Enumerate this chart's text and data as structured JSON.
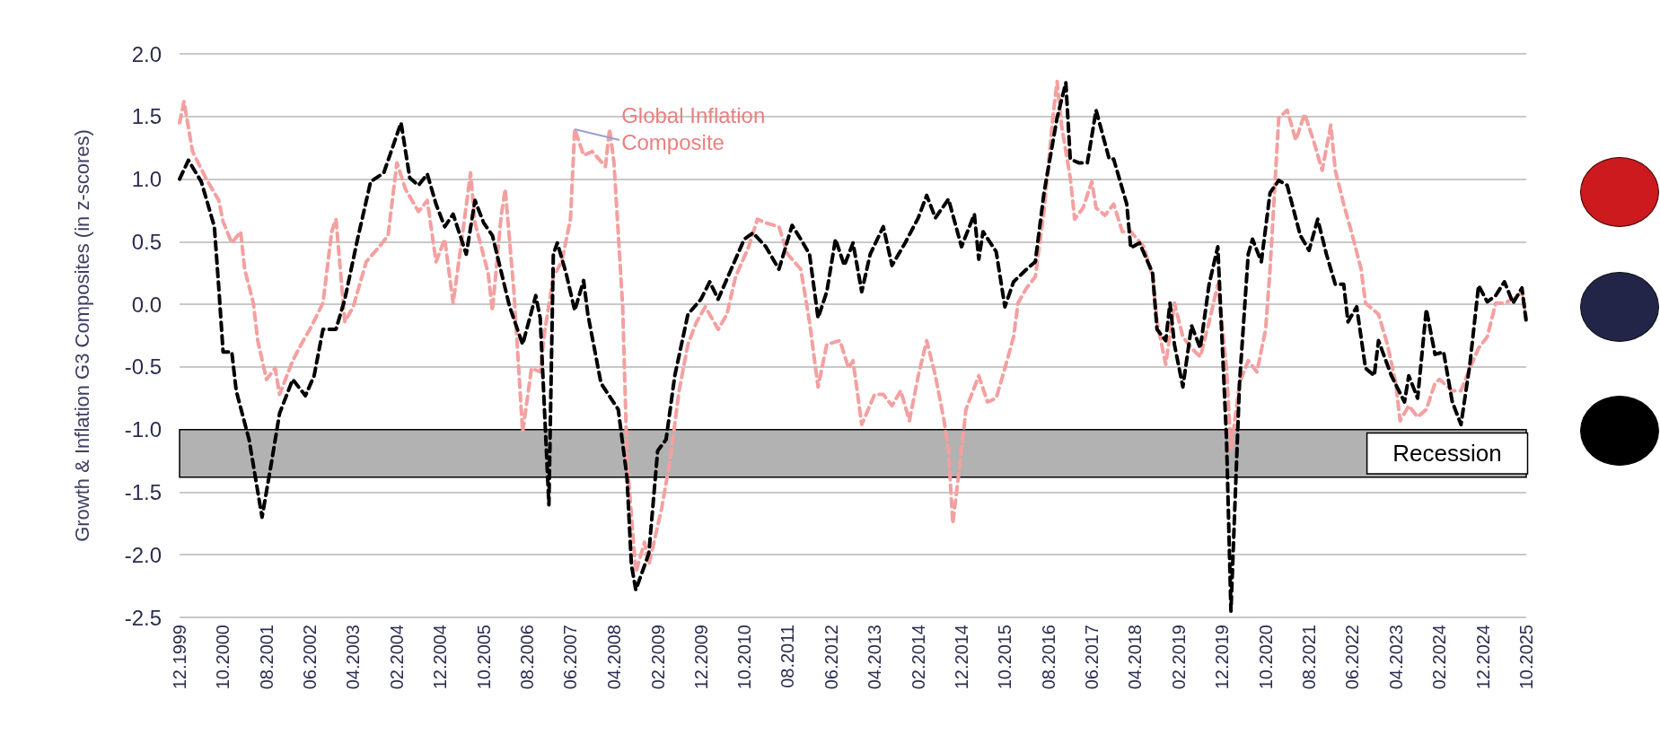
{
  "chart_data": {
    "type": "line",
    "ylabel": "Growth & Inflation G3 Composites (in z-scores)",
    "xlim": [
      "1999-12",
      "2025-10"
    ],
    "ylim": [
      -2.5,
      2.0
    ],
    "xticks": [
      {
        "value": "1999-12",
        "label": "12.1999"
      },
      {
        "value": "2000-10",
        "label": "10.2000"
      },
      {
        "value": "2001-08",
        "label": "08.2001"
      },
      {
        "value": "2002-06",
        "label": "06.2002"
      },
      {
        "value": "2003-04",
        "label": "04.2003"
      },
      {
        "value": "2004-02",
        "label": "02.2004"
      },
      {
        "value": "2004-12",
        "label": "12.2004"
      },
      {
        "value": "2005-10",
        "label": "10.2005"
      },
      {
        "value": "2006-08",
        "label": "08.2006"
      },
      {
        "value": "2007-06",
        "label": "06.2007"
      },
      {
        "value": "2008-04",
        "label": "04.2008"
      },
      {
        "value": "2009-02",
        "label": "02.2009"
      },
      {
        "value": "2009-12",
        "label": "12.2009"
      },
      {
        "value": "2010-10",
        "label": "10.2010"
      },
      {
        "value": "2011-08",
        "label": "08.2011"
      },
      {
        "value": "2012-06",
        "label": "06.2012"
      },
      {
        "value": "2013-04",
        "label": "04.2013"
      },
      {
        "value": "2014-02",
        "label": "02.2014"
      },
      {
        "value": "2014-12",
        "label": "12.2014"
      },
      {
        "value": "2015-10",
        "label": "10.2015"
      },
      {
        "value": "2016-08",
        "label": "08.2016"
      },
      {
        "value": "2017-06",
        "label": "06.2017"
      },
      {
        "value": "2018-04",
        "label": "04.2018"
      },
      {
        "value": "2019-02",
        "label": "02.2019"
      },
      {
        "value": "2019-12",
        "label": "12.2019"
      },
      {
        "value": "2020-10",
        "label": "10.2020"
      },
      {
        "value": "2021-08",
        "label": "08.2021"
      },
      {
        "value": "2022-06",
        "label": "06.2022"
      },
      {
        "value": "2023-04",
        "label": "04.2023"
      },
      {
        "value": "2024-02",
        "label": "02.2024"
      },
      {
        "value": "2024-12",
        "label": "12.2024"
      },
      {
        "value": "2025-10",
        "label": "10.2025"
      }
    ],
    "yticks": [
      -2.5,
      {
        "value": -2,
        "label": "-2.0"
      },
      -1.5,
      {
        "value": -1,
        "label": "-1.0"
      },
      -0.5,
      {
        "value": 0,
        "label": "0.0"
      },
      0.5,
      {
        "value": 1,
        "label": "1.0"
      },
      1.5,
      {
        "value": 2,
        "label": "2.0"
      }
    ],
    "grid": "y",
    "line_style": "dashed",
    "bands": [
      {
        "axis": "y",
        "from": -1.38,
        "to": -1.0,
        "label": "Recession",
        "color": "#b2b2b2"
      }
    ],
    "annotations": [
      {
        "text": "Global Inflation Composite",
        "x": "2007-07",
        "y": 1.4
      }
    ],
    "series": [
      {
        "color": "#f4a0a0",
        "x": [
          "1999-12",
          "2000-01",
          "2000-03",
          "2000-06",
          "2000-09",
          "2000-10",
          "2000-12",
          "2001-02",
          "2001-03",
          "2001-05",
          "2001-06",
          "2001-08",
          "2001-10",
          "2001-11",
          "2002-02",
          "2002-04",
          "2002-06",
          "2002-09",
          "2002-11",
          "2002-12",
          "2003-02",
          "2003-04",
          "2003-07",
          "2003-10",
          "2003-12",
          "2004-02",
          "2004-04",
          "2004-07",
          "2004-09",
          "2004-11",
          "2005-01",
          "2005-03",
          "2005-05",
          "2005-07",
          "2005-08",
          "2005-11",
          "2005-12",
          "2006-02",
          "2006-03",
          "2006-05",
          "2006-07",
          "2006-09",
          "2006-11",
          "2006-12",
          "2007-02",
          "2007-04",
          "2007-06",
          "2007-07",
          "2007-09",
          "2007-11",
          "2008-02",
          "2008-03",
          "2008-04",
          "2008-06",
          "2008-07",
          "2008-09",
          "2008-11",
          "2008-12",
          "2009-03",
          "2009-05",
          "2009-07",
          "2009-09",
          "2009-11",
          "2010-01",
          "2010-04",
          "2010-06",
          "2010-08",
          "2010-11",
          "2011-01",
          "2011-03",
          "2011-06",
          "2011-08",
          "2011-11",
          "2012-01",
          "2012-03",
          "2012-05",
          "2012-08",
          "2012-10",
          "2012-11",
          "2013-01",
          "2013-04",
          "2013-06",
          "2013-08",
          "2013-10",
          "2013-12",
          "2014-02",
          "2014-04",
          "2014-06",
          "2014-08",
          "2014-09",
          "2014-10",
          "2014-12",
          "2015-01",
          "2015-04",
          "2015-06",
          "2015-08",
          "2015-10",
          "2015-12",
          "2016-01",
          "2016-03",
          "2016-05",
          "2016-07",
          "2016-09",
          "2016-10",
          "2016-11",
          "2017-01",
          "2017-02",
          "2017-04",
          "2017-06",
          "2017-07",
          "2017-09",
          "2017-11",
          "2018-01",
          "2018-03",
          "2018-06",
          "2018-08",
          "2018-09",
          "2018-11",
          "2019-01",
          "2019-03",
          "2019-05",
          "2019-07",
          "2019-09",
          "2019-11",
          "2020-01",
          "2020-02",
          "2020-04",
          "2020-06",
          "2020-08",
          "2020-10",
          "2020-11",
          "2021-01",
          "2021-03",
          "2021-05",
          "2021-07",
          "2021-09",
          "2021-11",
          "2022-01",
          "2022-02",
          "2022-04",
          "2022-06",
          "2022-08",
          "2022-09",
          "2022-12",
          "2023-02",
          "2023-04",
          "2023-05",
          "2023-07",
          "2023-09",
          "2023-11",
          "2024-01",
          "2024-02",
          "2024-05",
          "2024-07",
          "2024-09",
          "2024-11",
          "2025-01",
          "2025-03",
          "2025-05",
          "2025-07",
          "2025-09",
          "2025-10"
        ],
        "values": [
          1.45,
          1.62,
          1.22,
          1.01,
          0.83,
          0.66,
          0.49,
          0.58,
          0.28,
          0.01,
          -0.29,
          -0.6,
          -0.51,
          -0.72,
          -0.45,
          -0.32,
          -0.2,
          0.01,
          0.58,
          0.68,
          -0.14,
          -0.02,
          0.34,
          0.46,
          0.55,
          1.13,
          0.92,
          0.74,
          0.83,
          0.34,
          0.52,
          0.01,
          0.52,
          1.05,
          0.65,
          0.25,
          -0.05,
          0.71,
          0.92,
          0.1,
          -1.02,
          -0.51,
          -0.54,
          -0.23,
          0.22,
          0.34,
          0.68,
          1.4,
          1.19,
          1.22,
          1.1,
          1.4,
          1.13,
          -0.02,
          -1.23,
          -2.14,
          -1.9,
          -2.08,
          -1.63,
          -1.23,
          -0.69,
          -0.32,
          -0.14,
          -0.02,
          -0.2,
          -0.08,
          0.22,
          0.46,
          0.68,
          0.65,
          0.62,
          0.4,
          0.28,
          -0.14,
          -0.66,
          -0.32,
          -0.29,
          -0.51,
          -0.45,
          -0.96,
          -0.72,
          -0.72,
          -0.81,
          -0.69,
          -0.93,
          -0.57,
          -0.29,
          -0.57,
          -0.93,
          -1.17,
          -1.75,
          -1.17,
          -0.84,
          -0.57,
          -0.78,
          -0.75,
          -0.51,
          -0.26,
          0.01,
          0.13,
          0.22,
          0.74,
          1.49,
          1.78,
          1.43,
          1.01,
          0.68,
          0.77,
          0.98,
          0.77,
          0.71,
          0.8,
          0.58,
          0.58,
          0.46,
          0.22,
          -0.14,
          -0.48,
          0.01,
          -0.26,
          -0.35,
          -0.42,
          -0.14,
          0.16,
          -0.51,
          -1.17,
          -0.63,
          -0.45,
          -0.54,
          -0.2,
          0.28,
          1.49,
          1.55,
          1.31,
          1.52,
          1.31,
          1.07,
          1.43,
          1.07,
          0.8,
          0.55,
          0.28,
          0.01,
          -0.08,
          -0.32,
          -0.63,
          -0.93,
          -0.81,
          -0.9,
          -0.84,
          -0.63,
          -0.6,
          -0.69,
          -0.69,
          -0.51,
          -0.35,
          -0.26,
          0.01,
          0.01,
          0.04,
          0.1,
          -0.11
        ]
      },
      {
        "color": "#000000",
        "x": [
          "1999-12",
          "2000-02",
          "2000-05",
          "2000-08",
          "2000-09",
          "2000-10",
          "2000-12",
          "2001-01",
          "2001-04",
          "2001-07",
          "2001-09",
          "2001-11",
          "2002-02",
          "2002-05",
          "2002-07",
          "2002-09",
          "2002-12",
          "2003-02",
          "2003-05",
          "2003-08",
          "2003-11",
          "2004-03",
          "2004-05",
          "2004-07",
          "2004-09",
          "2004-11",
          "2005-01",
          "2005-03",
          "2005-06",
          "2005-08",
          "2005-10",
          "2005-12",
          "2006-04",
          "2006-07",
          "2006-10",
          "2006-11",
          "2007-01",
          "2007-02",
          "2007-03",
          "2007-05",
          "2007-07",
          "2007-09",
          "2007-10",
          "2008-01",
          "2008-05",
          "2008-07",
          "2008-08",
          "2008-09",
          "2008-12",
          "2009-02",
          "2009-04",
          "2009-06",
          "2009-09",
          "2009-12",
          "2010-02",
          "2010-04",
          "2010-07",
          "2010-10",
          "2010-12",
          "2011-03",
          "2011-06",
          "2011-09",
          "2011-11",
          "2012-01",
          "2012-03",
          "2012-05",
          "2012-07",
          "2012-09",
          "2012-11",
          "2013-01",
          "2013-03",
          "2013-06",
          "2013-08",
          "2013-11",
          "2014-02",
          "2014-04",
          "2014-06",
          "2014-09",
          "2014-12",
          "2015-03",
          "2015-04",
          "2015-05",
          "2015-08",
          "2015-10",
          "2015-12",
          "2016-03",
          "2016-05",
          "2016-07",
          "2016-10",
          "2016-12",
          "2017-01",
          "2017-03",
          "2017-05",
          "2017-07",
          "2017-10",
          "2017-11",
          "2018-02",
          "2018-03",
          "2018-05",
          "2018-08",
          "2018-09",
          "2018-11",
          "2018-12",
          "2019-01",
          "2019-03",
          "2019-05",
          "2019-07",
          "2019-09",
          "2019-11",
          "2020-01",
          "2020-02",
          "2020-04",
          "2020-06",
          "2020-07",
          "2020-09",
          "2020-11",
          "2021-01",
          "2021-03",
          "2021-06",
          "2021-08",
          "2021-10",
          "2021-12",
          "2022-02",
          "2022-04",
          "2022-05",
          "2022-07",
          "2022-09",
          "2022-11",
          "2022-12",
          "2023-03",
          "2023-06",
          "2023-07",
          "2023-09",
          "2023-11",
          "2024-01",
          "2024-03",
          "2024-05",
          "2024-07",
          "2024-09",
          "2024-11",
          "2025-01",
          "2025-03",
          "2025-05",
          "2025-07",
          "2025-09",
          "2025-10"
        ],
        "values": [
          1.0,
          1.15,
          0.98,
          0.62,
          0.13,
          -0.38,
          -0.38,
          -0.69,
          -1.08,
          -1.7,
          -1.29,
          -0.87,
          -0.6,
          -0.73,
          -0.57,
          -0.2,
          -0.2,
          0.04,
          0.52,
          0.98,
          1.05,
          1.45,
          1.01,
          0.95,
          1.04,
          0.8,
          0.62,
          0.72,
          0.4,
          0.83,
          0.65,
          0.55,
          -0.02,
          -0.32,
          0.07,
          -0.11,
          -1.6,
          0.4,
          0.49,
          0.25,
          -0.05,
          0.19,
          -0.08,
          -0.63,
          -0.84,
          -1.38,
          -2.08,
          -2.28,
          -1.99,
          -1.17,
          -1.08,
          -0.57,
          -0.08,
          0.04,
          0.18,
          0.04,
          0.28,
          0.52,
          0.57,
          0.46,
          0.28,
          0.63,
          0.52,
          0.4,
          -0.11,
          0.1,
          0.52,
          0.31,
          0.49,
          0.1,
          0.4,
          0.62,
          0.31,
          0.49,
          0.69,
          0.87,
          0.69,
          0.84,
          0.46,
          0.72,
          0.36,
          0.58,
          0.42,
          -0.02,
          0.18,
          0.28,
          0.34,
          0.89,
          1.49,
          1.77,
          1.16,
          1.13,
          1.13,
          1.55,
          1.16,
          1.16,
          0.8,
          0.45,
          0.49,
          0.25,
          -0.2,
          -0.29,
          0.01,
          -0.32,
          -0.66,
          -0.17,
          -0.35,
          0.16,
          0.46,
          -1.08,
          -2.45,
          -0.63,
          0.4,
          0.52,
          0.34,
          0.89,
          0.99,
          0.95,
          0.55,
          0.43,
          0.68,
          0.4,
          0.16,
          0.16,
          -0.14,
          -0.02,
          -0.51,
          -0.57,
          -0.29,
          -0.57,
          -0.78,
          -0.57,
          -0.75,
          -0.04,
          -0.4,
          -0.38,
          -0.78,
          -0.96,
          -0.48,
          0.15,
          0.02,
          0.07,
          0.18,
          0.01,
          0.13,
          -0.14
        ]
      }
    ]
  }
}
